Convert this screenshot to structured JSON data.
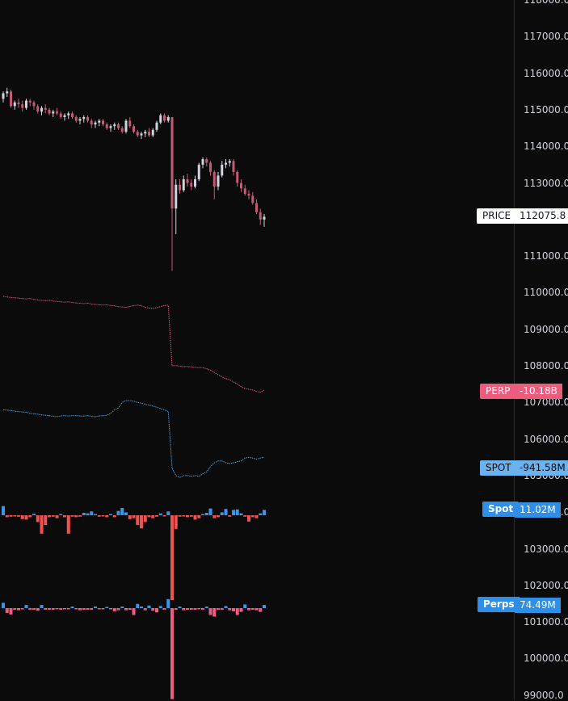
{
  "chart_data": {
    "type": "line",
    "price_axis": {
      "ticks": [
        "118000.0",
        "117000.0",
        "116000.0",
        "115000.0",
        "114000.0",
        "113000.0",
        "112000.0",
        "111000.0",
        "110000.0",
        "109000.0",
        "108000.0",
        "107000.0",
        "106000.0",
        "105000.0",
        "104000.0",
        "103000.0",
        "102000.0",
        "101000.0",
        "100000.0",
        "99000.0"
      ],
      "range": [
        98900,
        118000
      ]
    },
    "candles": [
      [
        115300,
        115500,
        115200,
        115450
      ],
      [
        115450,
        115600,
        115350,
        115500
      ],
      [
        115500,
        115550,
        115050,
        115100
      ],
      [
        115100,
        115250,
        115000,
        115200
      ],
      [
        115200,
        115300,
        115050,
        115150
      ],
      [
        115150,
        115250,
        114950,
        115050
      ],
      [
        115050,
        115300,
        115000,
        115250
      ],
      [
        115250,
        115300,
        115100,
        115200
      ],
      [
        115200,
        115250,
        115000,
        115100
      ],
      [
        115100,
        115150,
        114900,
        114950
      ],
      [
        114950,
        115100,
        114850,
        115050
      ],
      [
        115050,
        115150,
        114900,
        115000
      ],
      [
        115000,
        115050,
        114850,
        114900
      ],
      [
        114900,
        115000,
        114800,
        114950
      ],
      [
        114950,
        115050,
        114850,
        114900
      ],
      [
        114900,
        114950,
        114750,
        114800
      ],
      [
        114800,
        114900,
        114700,
        114850
      ],
      [
        114850,
        114950,
        114750,
        114900
      ],
      [
        114900,
        114950,
        114750,
        114800
      ],
      [
        114800,
        114850,
        114650,
        114700
      ],
      [
        114700,
        114800,
        114600,
        114750
      ],
      [
        114750,
        114850,
        114650,
        114800
      ],
      [
        114800,
        114850,
        114650,
        114700
      ],
      [
        114700,
        114750,
        114500,
        114600
      ],
      [
        114600,
        114700,
        114500,
        114650
      ],
      [
        114650,
        114750,
        114550,
        114700
      ],
      [
        114700,
        114750,
        114550,
        114600
      ],
      [
        114600,
        114650,
        114450,
        114500
      ],
      [
        114500,
        114600,
        114400,
        114550
      ],
      [
        114550,
        114650,
        114450,
        114600
      ],
      [
        114600,
        114650,
        114450,
        114500
      ],
      [
        114500,
        114550,
        114350,
        114400
      ],
      [
        114400,
        114750,
        114350,
        114700
      ],
      [
        114700,
        114800,
        114500,
        114550
      ],
      [
        114550,
        114600,
        114350,
        114400
      ],
      [
        114400,
        114450,
        114250,
        114300
      ],
      [
        114300,
        114400,
        114200,
        114350
      ],
      [
        114350,
        114450,
        114250,
        114400
      ],
      [
        114400,
        114500,
        114250,
        114300
      ],
      [
        114300,
        114500,
        114250,
        114450
      ],
      [
        114450,
        114700,
        114400,
        114650
      ],
      [
        114650,
        114900,
        114600,
        114850
      ],
      [
        114850,
        114900,
        114650,
        114700
      ],
      [
        114700,
        114850,
        114650,
        114800
      ],
      [
        114800,
        114750,
        110600,
        112300
      ],
      [
        112300,
        113100,
        111600,
        112950
      ],
      [
        112950,
        113100,
        112700,
        112800
      ],
      [
        112800,
        113200,
        112750,
        113100
      ],
      [
        113100,
        113250,
        112900,
        113000
      ],
      [
        113000,
        113100,
        112800,
        112900
      ],
      [
        112900,
        113200,
        112850,
        113100
      ],
      [
        113100,
        113550,
        113050,
        113500
      ],
      [
        113500,
        113700,
        113400,
        113650
      ],
      [
        113650,
        113700,
        113450,
        113550
      ],
      [
        113550,
        113600,
        113200,
        113300
      ],
      [
        113300,
        113350,
        112550,
        112900
      ],
      [
        112900,
        113300,
        112800,
        113200
      ],
      [
        113200,
        113600,
        113150,
        113500
      ],
      [
        113500,
        113650,
        113400,
        113550
      ],
      [
        113550,
        113650,
        113450,
        113600
      ],
      [
        113600,
        113650,
        113200,
        113300
      ],
      [
        113300,
        113350,
        112900,
        113000
      ],
      [
        113000,
        113100,
        112750,
        112850
      ],
      [
        112850,
        112950,
        112650,
        112700
      ],
      [
        112700,
        112800,
        112550,
        112650
      ],
      [
        112650,
        112750,
        112400,
        112450
      ],
      [
        112450,
        112550,
        112150,
        112200
      ],
      [
        112200,
        112300,
        111850,
        112000
      ],
      [
        112000,
        112150,
        111800,
        112075
      ]
    ],
    "perp_line": [
      109900,
      109880,
      109870,
      109860,
      109850,
      109840,
      109830,
      109840,
      109820,
      109800,
      109790,
      109780,
      109790,
      109770,
      109760,
      109750,
      109740,
      109750,
      109730,
      109720,
      109710,
      109700,
      109710,
      109690,
      109680,
      109670,
      109660,
      109670,
      109650,
      109640,
      109620,
      109610,
      109600,
      109620,
      109650,
      109660,
      109640,
      109600,
      109580,
      109570,
      109590,
      109620,
      109650,
      109660,
      108000,
      108010,
      107990,
      107980,
      107980,
      107970,
      107960,
      107950,
      107950,
      107920,
      107880,
      107820,
      107760,
      107700,
      107650,
      107620,
      107560,
      107500,
      107430,
      107380,
      107360,
      107340,
      107300,
      107280,
      107330
    ],
    "spot_line": [
      106800,
      106790,
      106780,
      106760,
      106750,
      106740,
      106730,
      106700,
      106690,
      106680,
      106660,
      106650,
      106640,
      106620,
      106610,
      106630,
      106640,
      106630,
      106640,
      106640,
      106630,
      106630,
      106640,
      106620,
      106610,
      106630,
      106640,
      106650,
      106700,
      106800,
      106850,
      107000,
      107050,
      107050,
      107030,
      107000,
      106980,
      106950,
      106930,
      106900,
      106870,
      106830,
      106800,
      106750,
      105200,
      105000,
      104950,
      105000,
      105000,
      104980,
      105000,
      104980,
      105050,
      105100,
      105250,
      105350,
      105400,
      105400,
      105350,
      105330,
      105350,
      105380,
      105400,
      105480,
      105500,
      105480,
      105450,
      105480,
      105500
    ],
    "spot_bars": [
      190000,
      -40000,
      -30000,
      -20000,
      -30000,
      -80000,
      -90000,
      -40000,
      30000,
      -140000,
      -380000,
      -200000,
      -40000,
      -30000,
      -60000,
      20000,
      -40000,
      -380000,
      -30000,
      -40000,
      -30000,
      50000,
      40000,
      80000,
      20000,
      -30000,
      -20000,
      -40000,
      20000,
      -40000,
      90000,
      150000,
      60000,
      -80000,
      -60000,
      -200000,
      -270000,
      -140000,
      -40000,
      -60000,
      -30000,
      40000,
      -20000,
      80000,
      -1750000,
      -280000,
      -30000,
      -20000,
      -40000,
      -30000,
      -90000,
      -60000,
      20000,
      50000,
      140000,
      -60000,
      -40000,
      60000,
      130000,
      -30000,
      110000,
      120000,
      40000,
      -30000,
      -130000,
      -40000,
      -60000,
      40000,
      110000
    ],
    "perp_bars": [
      100000,
      -90000,
      -120000,
      -30000,
      -40000,
      -20000,
      60000,
      -30000,
      -30000,
      -50000,
      60000,
      -30000,
      -30000,
      -30000,
      -20000,
      -30000,
      -20000,
      -20000,
      30000,
      -20000,
      -40000,
      -30000,
      -30000,
      -30000,
      30000,
      -20000,
      -20000,
      20000,
      -20000,
      -60000,
      -40000,
      30000,
      -40000,
      -30000,
      -130000,
      80000,
      30000,
      -40000,
      50000,
      -50000,
      -80000,
      40000,
      -30000,
      170000,
      -1720000,
      -30000,
      30000,
      -40000,
      -30000,
      -30000,
      -30000,
      -20000,
      -30000,
      30000,
      -130000,
      -160000,
      -30000,
      -30000,
      40000,
      -40000,
      -60000,
      -130000,
      -70000,
      70000,
      -40000,
      -30000,
      -40000,
      -70000,
      60000
    ],
    "labels": {
      "price": {
        "tag": "PRICE",
        "value": "112075.8"
      },
      "perp": {
        "tag": "PERP",
        "value": "-10.18B"
      },
      "spot": {
        "tag": "SPOT",
        "value": "-941.58M"
      },
      "spot_vol": {
        "tag": "Spot",
        "value": "11.02M"
      },
      "perps_vol": {
        "tag": "Perps",
        "value": "74.49M"
      }
    },
    "colors": {
      "background": "#0b0b0c",
      "up": "#d1d4dc",
      "down": "#c45a76",
      "perp_line": "#d4566e",
      "spot_line": "#4a9fe0",
      "bar_pos": "#3c95e8",
      "bar_neg": "#ef5350",
      "perp_bar_neg": "#ef5b84",
      "perp_tag": "#ee5c7d",
      "spot_tag": "#6bb3ee",
      "vol_tag": "#2f8fe6"
    },
    "grid": false
  }
}
